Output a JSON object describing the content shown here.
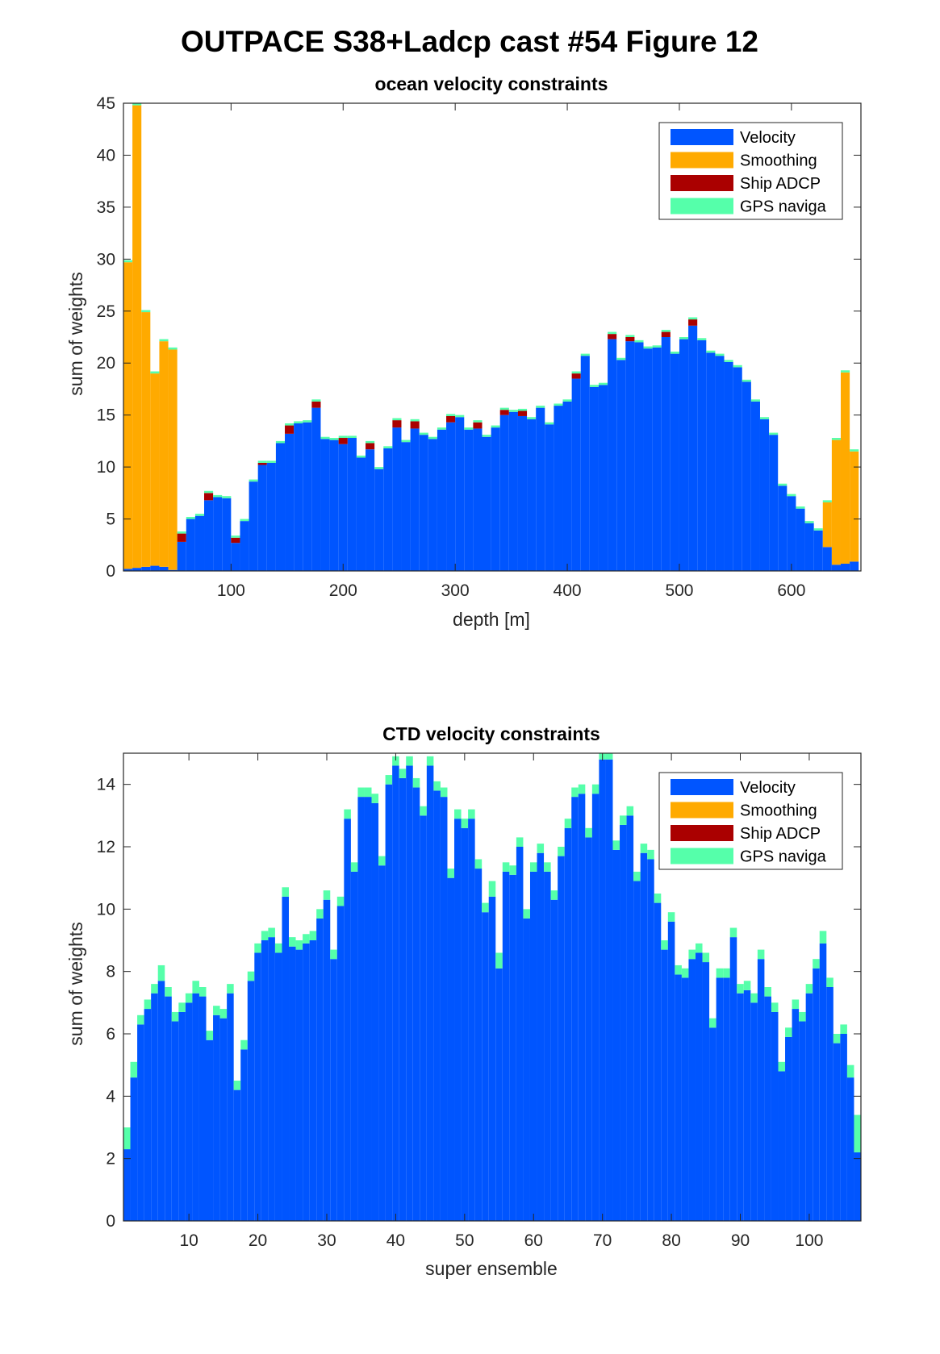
{
  "figure_title": "OUTPACE S38+Ladcp cast #54  Figure 12",
  "colors": {
    "velocity": "#0055ff",
    "smoothing": "#ffaa00",
    "ship_adcp": "#aa0000",
    "gps": "#55ffaa",
    "axis": "#262626"
  },
  "chart_data": [
    {
      "type": "bar",
      "stacked": true,
      "title": "ocean velocity constraints",
      "xlabel": "depth [m]",
      "ylabel": "sum of weights",
      "xlim": [
        4,
        662
      ],
      "ylim": [
        0,
        45
      ],
      "xticks": [
        100,
        200,
        300,
        400,
        500,
        600
      ],
      "yticks": [
        0,
        5,
        10,
        15,
        20,
        25,
        30,
        35,
        40,
        45
      ],
      "legend_position": "top-right",
      "bin_width": 8,
      "x": [
        8,
        16,
        24,
        32,
        40,
        48,
        56,
        64,
        72,
        80,
        88,
        96,
        104,
        112,
        120,
        128,
        136,
        144,
        152,
        160,
        168,
        176,
        184,
        192,
        200,
        208,
        216,
        224,
        232,
        240,
        248,
        256,
        264,
        272,
        280,
        288,
        296,
        304,
        312,
        320,
        328,
        336,
        344,
        352,
        360,
        368,
        376,
        384,
        392,
        400,
        408,
        416,
        424,
        432,
        440,
        448,
        456,
        464,
        472,
        480,
        488,
        496,
        504,
        512,
        520,
        528,
        536,
        544,
        552,
        560,
        568,
        576,
        584,
        592,
        600,
        608,
        616,
        624,
        632,
        640,
        648,
        656
      ],
      "series": [
        {
          "name": "Velocity",
          "color": "#0055ff",
          "values": [
            0.2,
            0.3,
            0.4,
            0.5,
            0.4,
            0.1,
            2.8,
            5.0,
            5.3,
            6.8,
            7.1,
            7.0,
            2.7,
            4.8,
            8.6,
            10.2,
            10.4,
            12.3,
            13.2,
            14.2,
            14.3,
            15.7,
            12.7,
            12.6,
            12.2,
            12.8,
            10.9,
            11.7,
            9.8,
            11.8,
            13.8,
            12.4,
            13.7,
            13.1,
            12.7,
            13.6,
            14.3,
            14.8,
            13.6,
            13.7,
            12.9,
            13.8,
            15.0,
            15.3,
            14.9,
            14.6,
            15.7,
            14.1,
            15.9,
            16.3,
            18.5,
            20.7,
            17.7,
            17.9,
            22.3,
            20.3,
            22.1,
            22.0,
            21.4,
            21.5,
            22.5,
            20.9,
            22.3,
            23.6,
            22.2,
            21.0,
            20.7,
            20.1,
            19.6,
            18.2,
            16.3,
            14.6,
            13.1,
            8.2,
            7.2,
            6.0,
            4.6,
            3.9,
            2.3,
            0.6,
            0.7,
            0.9
          ]
        },
        {
          "name": "Smoothing",
          "color": "#ffaa00",
          "values": [
            29.5,
            44.5,
            24.5,
            18.5,
            21.7,
            21.2,
            0,
            0,
            0,
            0,
            0,
            0,
            0,
            0,
            0,
            0,
            0,
            0,
            0,
            0,
            0,
            0,
            0,
            0,
            0,
            0,
            0,
            0,
            0,
            0,
            0,
            0,
            0,
            0,
            0,
            0,
            0,
            0,
            0,
            0,
            0,
            0,
            0,
            0,
            0,
            0,
            0,
            0,
            0,
            0,
            0,
            0,
            0,
            0,
            0,
            0,
            0,
            0,
            0,
            0,
            0,
            0,
            0,
            0,
            0,
            0,
            0,
            0,
            0,
            0,
            0,
            0,
            0,
            0,
            0,
            0,
            0,
            0,
            4.3,
            12.0,
            18.4,
            10.6
          ]
        },
        {
          "name": "Ship ADCP",
          "color": "#aa0000",
          "values": [
            0,
            0,
            0,
            0,
            0,
            0,
            0.8,
            0,
            0,
            0.7,
            0,
            0,
            0.5,
            0,
            0,
            0.2,
            0,
            0,
            0.8,
            0,
            0,
            0.6,
            0,
            0,
            0.6,
            0,
            0,
            0.6,
            0,
            0,
            0.7,
            0,
            0.7,
            0,
            0,
            0,
            0.6,
            0,
            0,
            0.6,
            0,
            0,
            0.5,
            0,
            0.5,
            0,
            0,
            0,
            0,
            0,
            0.5,
            0,
            0,
            0,
            0.5,
            0,
            0.4,
            0,
            0,
            0,
            0.5,
            0,
            0,
            0.6,
            0,
            0,
            0,
            0,
            0,
            0,
            0,
            0,
            0,
            0,
            0,
            0,
            0,
            0,
            0,
            0,
            0,
            0
          ]
        },
        {
          "name": "GPS naviga",
          "color": "#55ffaa",
          "values": [
            0.2,
            0.2,
            0.2,
            0.2,
            0.2,
            0.2,
            0.2,
            0.2,
            0.2,
            0.2,
            0.2,
            0.2,
            0.2,
            0.2,
            0.2,
            0.2,
            0.2,
            0.2,
            0.2,
            0.2,
            0.2,
            0.2,
            0.2,
            0.2,
            0.2,
            0.2,
            0.2,
            0.2,
            0.2,
            0.2,
            0.2,
            0.2,
            0.2,
            0.2,
            0.2,
            0.2,
            0.2,
            0.2,
            0.2,
            0.2,
            0.2,
            0.2,
            0.2,
            0.2,
            0.2,
            0.2,
            0.2,
            0.2,
            0.2,
            0.2,
            0.2,
            0.2,
            0.2,
            0.2,
            0.2,
            0.2,
            0.2,
            0.2,
            0.2,
            0.2,
            0.2,
            0.2,
            0.2,
            0.2,
            0.2,
            0.2,
            0.2,
            0.2,
            0.2,
            0.2,
            0.2,
            0.2,
            0.2,
            0.2,
            0.2,
            0.2,
            0.2,
            0.2,
            0.2,
            0.2,
            0.2,
            0.2
          ]
        }
      ]
    },
    {
      "type": "bar",
      "stacked": true,
      "title": "CTD velocity constraints",
      "xlabel": "super ensemble",
      "ylabel": "sum of weights",
      "xlim": [
        0.5,
        107.5
      ],
      "ylim": [
        0,
        15
      ],
      "xticks": [
        10,
        20,
        30,
        40,
        50,
        60,
        70,
        80,
        90,
        100
      ],
      "yticks": [
        0,
        2,
        4,
        6,
        8,
        10,
        12,
        14
      ],
      "legend_position": "top-right",
      "bin_width": 1,
      "x": [
        1,
        2,
        3,
        4,
        5,
        6,
        7,
        8,
        9,
        10,
        11,
        12,
        13,
        14,
        15,
        16,
        17,
        18,
        19,
        20,
        21,
        22,
        23,
        24,
        25,
        26,
        27,
        28,
        29,
        30,
        31,
        32,
        33,
        34,
        35,
        36,
        37,
        38,
        39,
        40,
        41,
        42,
        43,
        44,
        45,
        46,
        47,
        48,
        49,
        50,
        51,
        52,
        53,
        54,
        55,
        56,
        57,
        58,
        59,
        60,
        61,
        62,
        63,
        64,
        65,
        66,
        67,
        68,
        69,
        70,
        71,
        72,
        73,
        74,
        75,
        76,
        77,
        78,
        79,
        80,
        81,
        82,
        83,
        84,
        85,
        86,
        87,
        88,
        89,
        90,
        91,
        92,
        93,
        94,
        95,
        96,
        97,
        98,
        99,
        100,
        101,
        102,
        103,
        104,
        105,
        106,
        107
      ],
      "series": [
        {
          "name": "Velocity",
          "color": "#0055ff",
          "values": [
            2.3,
            4.6,
            6.3,
            6.8,
            7.3,
            7.7,
            7.2,
            6.4,
            6.7,
            7.0,
            7.3,
            7.2,
            5.8,
            6.6,
            6.5,
            7.3,
            4.2,
            5.5,
            7.7,
            8.6,
            9.0,
            9.1,
            8.6,
            10.4,
            8.8,
            8.7,
            8.9,
            9.0,
            9.7,
            10.3,
            8.4,
            10.1,
            12.9,
            11.2,
            13.6,
            13.6,
            13.4,
            11.4,
            14.0,
            14.6,
            14.2,
            14.6,
            13.9,
            13.0,
            14.6,
            13.8,
            13.6,
            11.0,
            12.9,
            12.6,
            12.9,
            11.3,
            9.9,
            10.4,
            8.1,
            11.2,
            11.1,
            12.0,
            9.7,
            11.2,
            11.8,
            11.2,
            10.3,
            11.7,
            12.6,
            13.6,
            13.7,
            12.3,
            13.7,
            14.8,
            14.8,
            11.9,
            12.7,
            13.0,
            10.9,
            11.8,
            11.6,
            10.2,
            8.7,
            9.6,
            7.9,
            7.8,
            8.4,
            8.6,
            8.3,
            6.2,
            7.8,
            7.8,
            9.1,
            7.3,
            7.4,
            7.0,
            8.4,
            7.2,
            6.7,
            4.8,
            5.9,
            6.8,
            6.4,
            7.3,
            8.1,
            8.9,
            7.5,
            5.7,
            6.0,
            4.6,
            2.2
          ]
        },
        {
          "name": "Smoothing",
          "color": "#ffaa00",
          "values": [
            0,
            0,
            0,
            0,
            0,
            0,
            0,
            0,
            0,
            0,
            0,
            0,
            0,
            0,
            0,
            0,
            0,
            0,
            0,
            0,
            0,
            0,
            0,
            0,
            0,
            0,
            0,
            0,
            0,
            0,
            0,
            0,
            0,
            0,
            0,
            0,
            0,
            0,
            0,
            0,
            0,
            0,
            0,
            0,
            0,
            0,
            0,
            0,
            0,
            0,
            0,
            0,
            0,
            0,
            0,
            0,
            0,
            0,
            0,
            0,
            0,
            0,
            0,
            0,
            0,
            0,
            0,
            0,
            0,
            0,
            0,
            0,
            0,
            0,
            0,
            0,
            0,
            0,
            0,
            0,
            0,
            0,
            0,
            0,
            0,
            0,
            0,
            0,
            0,
            0,
            0,
            0,
            0,
            0,
            0,
            0,
            0,
            0,
            0,
            0,
            0,
            0,
            0,
            0,
            0,
            0,
            0
          ]
        },
        {
          "name": "Ship ADCP",
          "color": "#aa0000",
          "values": [
            0,
            0,
            0,
            0,
            0,
            0,
            0,
            0,
            0,
            0,
            0,
            0,
            0,
            0,
            0,
            0,
            0,
            0,
            0,
            0,
            0,
            0,
            0,
            0,
            0,
            0,
            0,
            0,
            0,
            0,
            0,
            0,
            0,
            0,
            0,
            0,
            0,
            0,
            0,
            0,
            0,
            0,
            0,
            0,
            0,
            0,
            0,
            0,
            0,
            0,
            0,
            0,
            0,
            0,
            0,
            0,
            0,
            0,
            0,
            0,
            0,
            0,
            0,
            0,
            0,
            0,
            0,
            0,
            0,
            0,
            0,
            0,
            0,
            0,
            0,
            0,
            0,
            0,
            0,
            0,
            0,
            0,
            0,
            0,
            0,
            0,
            0,
            0,
            0,
            0,
            0,
            0,
            0,
            0,
            0,
            0,
            0,
            0,
            0,
            0,
            0,
            0,
            0,
            0,
            0,
            0,
            0
          ]
        },
        {
          "name": "GPS naviga",
          "color": "#55ffaa",
          "values": [
            0.7,
            0.5,
            0.3,
            0.3,
            0.3,
            0.5,
            0.3,
            0.3,
            0.3,
            0.3,
            0.4,
            0.3,
            0.3,
            0.3,
            0.3,
            0.3,
            0.3,
            0.3,
            0.3,
            0.3,
            0.3,
            0.3,
            0.3,
            0.3,
            0.3,
            0.3,
            0.3,
            0.3,
            0.3,
            0.3,
            0.3,
            0.3,
            0.3,
            0.3,
            0.3,
            0.3,
            0.3,
            0.3,
            0.3,
            0.3,
            0.3,
            0.3,
            0.3,
            0.3,
            0.3,
            0.3,
            0.3,
            0.3,
            0.3,
            0.3,
            0.3,
            0.3,
            0.3,
            0.5,
            0.5,
            0.3,
            0.3,
            0.3,
            0.3,
            0.3,
            0.3,
            0.3,
            0.3,
            0.3,
            0.3,
            0.3,
            0.3,
            0.3,
            0.3,
            0.3,
            0.3,
            0.3,
            0.3,
            0.3,
            0.3,
            0.3,
            0.3,
            0.3,
            0.3,
            0.3,
            0.3,
            0.3,
            0.3,
            0.3,
            0.3,
            0.3,
            0.3,
            0.3,
            0.3,
            0.3,
            0.3,
            0.3,
            0.3,
            0.3,
            0.3,
            0.3,
            0.3,
            0.3,
            0.3,
            0.3,
            0.3,
            0.4,
            0.3,
            0.3,
            0.3,
            0.4,
            1.2
          ]
        }
      ]
    }
  ]
}
